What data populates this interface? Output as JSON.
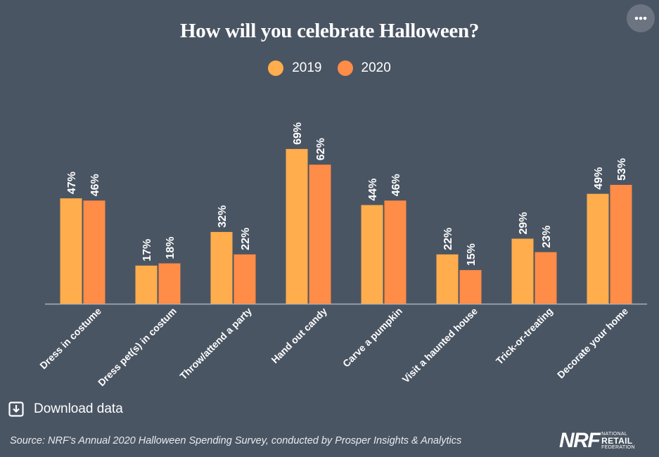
{
  "title": "How will you celebrate Halloween?",
  "more_button": "•••",
  "download_label": "Download data",
  "source": "Source: NRF's Annual 2020 Halloween Spending Survey, conducted by Prosper Insights & Analytics",
  "logo": {
    "mark": "NRF",
    "line1": "NATIONAL",
    "line2": "RETAIL",
    "line3": "FEDERATION"
  },
  "colors": {
    "background": "#4a5563",
    "series_2019": "#ffad4d",
    "series_2020": "#ff8c47",
    "axis": "#a9b0ba"
  },
  "icons": {
    "download": "download-icon",
    "more": "more-icon"
  },
  "chart_data": {
    "type": "bar",
    "title": "How will you celebrate Halloween?",
    "categories": [
      "Dress in costume",
      "Dress pet(s) in costum",
      "Throw/attend a party",
      "Hand out candy",
      "Carve a pumpkin",
      "Visit a haunted house",
      "Trick-or-treating",
      "Decorate your home"
    ],
    "series": [
      {
        "name": "2019",
        "values": [
          47,
          17,
          32,
          69,
          44,
          22,
          29,
          49
        ],
        "color": "#ffad4d"
      },
      {
        "name": "2020",
        "values": [
          46,
          18,
          22,
          62,
          46,
          15,
          23,
          53
        ],
        "color": "#ff8c47"
      }
    ],
    "value_suffix": "%",
    "ylim": [
      0,
      70
    ],
    "legend": "top-center",
    "grid": false
  }
}
